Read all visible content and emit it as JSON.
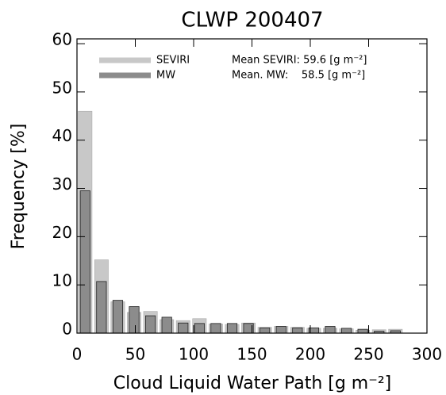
{
  "chart_data": {
    "type": "histogram",
    "title": "CLWP 200407",
    "xlabel": "Cloud Liquid Water Path [g m⁻²]",
    "ylabel": "Frequency [%]",
    "bins": [
      0,
      14,
      28,
      42,
      56,
      70,
      84,
      98,
      112,
      126,
      140,
      154,
      168,
      182,
      196,
      210,
      224,
      238,
      252,
      266,
      280
    ],
    "series": [
      {
        "name": "SEVIRI",
        "color": "#c8c8c8",
        "values": [
          46,
          15.2,
          6.5,
          4.3,
          4.5,
          2.8,
          2.6,
          3.0,
          1.9,
          1.8,
          2.1,
          1.2,
          1.4,
          1.2,
          1.0,
          1.0,
          0.9,
          0.6,
          0.7,
          0.8
        ]
      },
      {
        "name": "MW",
        "color": "#8c8c8c",
        "values": [
          29.5,
          10.7,
          6.8,
          5.5,
          3.6,
          3.3,
          2.1,
          2.0,
          2.0,
          2.0,
          2.0,
          1.1,
          1.4,
          1.1,
          1.1,
          1.4,
          1.0,
          0.8,
          0.4,
          0.5
        ]
      }
    ],
    "annotations": [
      "Mean SEVIRI: 59.6 [g m⁻²]",
      "Mean. MW:    58.5 [g m⁻²]"
    ],
    "xlim": [
      0,
      300
    ],
    "xticks": [
      0,
      50,
      100,
      150,
      200,
      250,
      300
    ],
    "ylim": [
      0,
      61
    ],
    "yticks": [
      0,
      10,
      20,
      30,
      40,
      50,
      60
    ],
    "legend": "upper-left"
  }
}
